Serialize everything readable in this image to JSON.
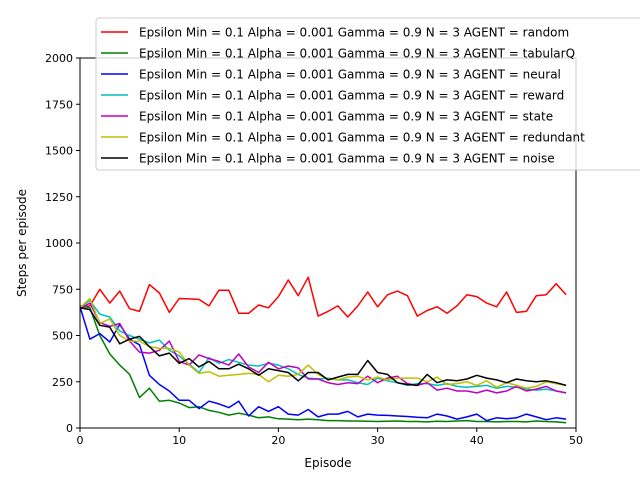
{
  "chart_data": {
    "type": "line",
    "title": "",
    "xlabel": "Episode",
    "ylabel": "Steps per episode",
    "xlim": [
      0,
      50
    ],
    "ylim": [
      0,
      2000
    ],
    "xticks": [
      0,
      10,
      20,
      30,
      40,
      50
    ],
    "yticks": [
      0,
      250,
      500,
      750,
      1000,
      1250,
      1500,
      1750,
      2000
    ],
    "grid": false,
    "legend_position": "top-right",
    "x": [
      0,
      1,
      2,
      3,
      4,
      5,
      6,
      7,
      8,
      9,
      10,
      11,
      12,
      13,
      14,
      15,
      16,
      17,
      18,
      19,
      20,
      21,
      22,
      23,
      24,
      25,
      26,
      27,
      28,
      29,
      30,
      31,
      32,
      33,
      34,
      35,
      36,
      37,
      38,
      39,
      40,
      41,
      42,
      43,
      44,
      45,
      46,
      47,
      48,
      49
    ],
    "series": [
      {
        "name": "Epsilon Min = 0.1 Alpha = 0.001 Gamma = 0.9 N = 3 AGENT = random",
        "color": "#ff0000",
        "values": [
          650,
          660,
          750,
          675,
          740,
          645,
          630,
          775,
          730,
          625,
          700,
          698,
          695,
          660,
          745,
          745,
          620,
          620,
          665,
          650,
          710,
          800,
          715,
          815,
          605,
          630,
          660,
          600,
          660,
          735,
          655,
          720,
          740,
          715,
          605,
          635,
          655,
          620,
          660,
          720,
          710,
          675,
          655,
          735,
          625,
          630,
          715,
          720,
          780,
          720
        ]
      },
      {
        "name": "Epsilon Min = 0.1 Alpha = 0.001 Gamma = 0.9 N = 3 AGENT = tabularQ",
        "color": "#008000",
        "values": [
          660,
          650,
          500,
          400,
          340,
          290,
          165,
          215,
          145,
          150,
          135,
          110,
          115,
          95,
          85,
          70,
          80,
          70,
          55,
          60,
          50,
          48,
          45,
          48,
          45,
          40,
          40,
          38,
          38,
          37,
          35,
          37,
          38,
          35,
          35,
          33,
          37,
          35,
          38,
          40,
          35,
          35,
          33,
          35,
          35,
          33,
          38,
          35,
          33,
          28
        ]
      },
      {
        "name": "Epsilon Min = 0.1 Alpha = 0.001 Gamma = 0.9 N = 3 AGENT = neural",
        "color": "#0000ff",
        "values": [
          655,
          480,
          510,
          465,
          560,
          480,
          450,
          285,
          235,
          200,
          150,
          150,
          105,
          145,
          130,
          110,
          145,
          65,
          115,
          90,
          115,
          75,
          70,
          100,
          60,
          75,
          75,
          90,
          60,
          75,
          70,
          68,
          65,
          62,
          58,
          55,
          75,
          65,
          48,
          60,
          75,
          40,
          55,
          50,
          55,
          75,
          60,
          45,
          55,
          48
        ]
      },
      {
        "name": "Epsilon Min = 0.1 Alpha = 0.001 Gamma = 0.9 N = 3 AGENT = reward",
        "color": "#00bfbf",
        "values": [
          650,
          690,
          615,
          600,
          525,
          500,
          480,
          460,
          475,
          420,
          390,
          345,
          300,
          380,
          350,
          370,
          355,
          340,
          335,
          350,
          340,
          320,
          290,
          270,
          265,
          270,
          260,
          260,
          245,
          235,
          270,
          255,
          245,
          230,
          240,
          240,
          230,
          240,
          225,
          220,
          225,
          230,
          215,
          225,
          220,
          210,
          205,
          210,
          200,
          190
        ]
      },
      {
        "name": "Epsilon Min = 0.1 Alpha = 0.001 Gamma = 0.9 N = 3 AGENT = state",
        "color": "#bf00bf",
        "values": [
          645,
          675,
          570,
          550,
          565,
          470,
          410,
          405,
          420,
          470,
          360,
          340,
          395,
          375,
          360,
          340,
          400,
          330,
          300,
          355,
          320,
          335,
          325,
          265,
          265,
          245,
          235,
          245,
          240,
          280,
          245,
          270,
          280,
          240,
          230,
          245,
          205,
          215,
          200,
          200,
          190,
          205,
          190,
          200,
          225,
          200,
          210,
          225,
          200,
          190
        ]
      },
      {
        "name": "Epsilon Min = 0.1 Alpha = 0.001 Gamma = 0.9 N = 3 AGENT = redundant",
        "color": "#bfbf00",
        "values": [
          650,
          700,
          565,
          590,
          500,
          470,
          470,
          440,
          430,
          430,
          410,
          340,
          295,
          305,
          280,
          285,
          290,
          295,
          290,
          250,
          285,
          280,
          290,
          340,
          290,
          265,
          260,
          275,
          280,
          260,
          275,
          260,
          270,
          270,
          270,
          250,
          275,
          235,
          240,
          250,
          230,
          255,
          220,
          245,
          230,
          215,
          225,
          250,
          240,
          230
        ]
      },
      {
        "name": "Epsilon Min = 0.1 Alpha = 0.001 Gamma = 0.9 N = 3 AGENT = noise",
        "color": "#000000",
        "values": [
          650,
          640,
          555,
          545,
          455,
          480,
          495,
          440,
          390,
          405,
          350,
          375,
          330,
          360,
          320,
          320,
          345,
          320,
          285,
          320,
          310,
          300,
          255,
          300,
          300,
          260,
          275,
          290,
          290,
          365,
          300,
          290,
          245,
          235,
          230,
          290,
          245,
          260,
          255,
          265,
          285,
          270,
          260,
          245,
          265,
          255,
          250,
          255,
          245,
          230
        ]
      }
    ]
  }
}
